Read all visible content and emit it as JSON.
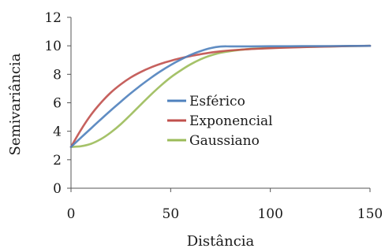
{
  "chart_data": {
    "type": "line",
    "xlabel": "Distância",
    "ylabel": "Semivariância",
    "xlim": [
      0,
      150
    ],
    "ylim": [
      0,
      12
    ],
    "xticks": [
      0,
      50,
      100,
      150
    ],
    "yticks": [
      0,
      2,
      4,
      6,
      8,
      10,
      12
    ],
    "grid": false,
    "legend_position": "center-right",
    "x": [
      0,
      5,
      10,
      15,
      20,
      25,
      30,
      35,
      40,
      45,
      50,
      55,
      60,
      65,
      70,
      75,
      80,
      90,
      100,
      110,
      120,
      130,
      140,
      150
    ],
    "series": [
      {
        "name": "Esférico",
        "color": "#4f81bd",
        "values": [
          2.9,
          3.55,
          4.2,
          4.84,
          5.47,
          6.08,
          6.67,
          7.22,
          7.74,
          8.22,
          8.65,
          9.03,
          9.36,
          9.63,
          9.84,
          9.95,
          9.96,
          9.96,
          9.97,
          9.97,
          9.98,
          9.98,
          9.99,
          10.0
        ]
      },
      {
        "name": "Exponencial",
        "color": "#c0504d",
        "values": [
          2.9,
          4.1,
          5.15,
          6.0,
          6.72,
          7.3,
          7.78,
          8.16,
          8.48,
          8.74,
          8.95,
          9.13,
          9.28,
          9.41,
          9.52,
          9.61,
          9.68,
          9.77,
          9.83,
          9.88,
          9.92,
          9.95,
          9.98,
          10.0
        ]
      },
      {
        "name": "Gaussiano",
        "color": "#9bbb59",
        "values": [
          2.9,
          2.95,
          3.12,
          3.45,
          3.92,
          4.5,
          5.17,
          5.87,
          6.56,
          7.2,
          7.78,
          8.27,
          8.7,
          9.05,
          9.32,
          9.51,
          9.63,
          9.78,
          9.85,
          9.9,
          9.93,
          9.96,
          9.98,
          10.0
        ]
      }
    ]
  }
}
